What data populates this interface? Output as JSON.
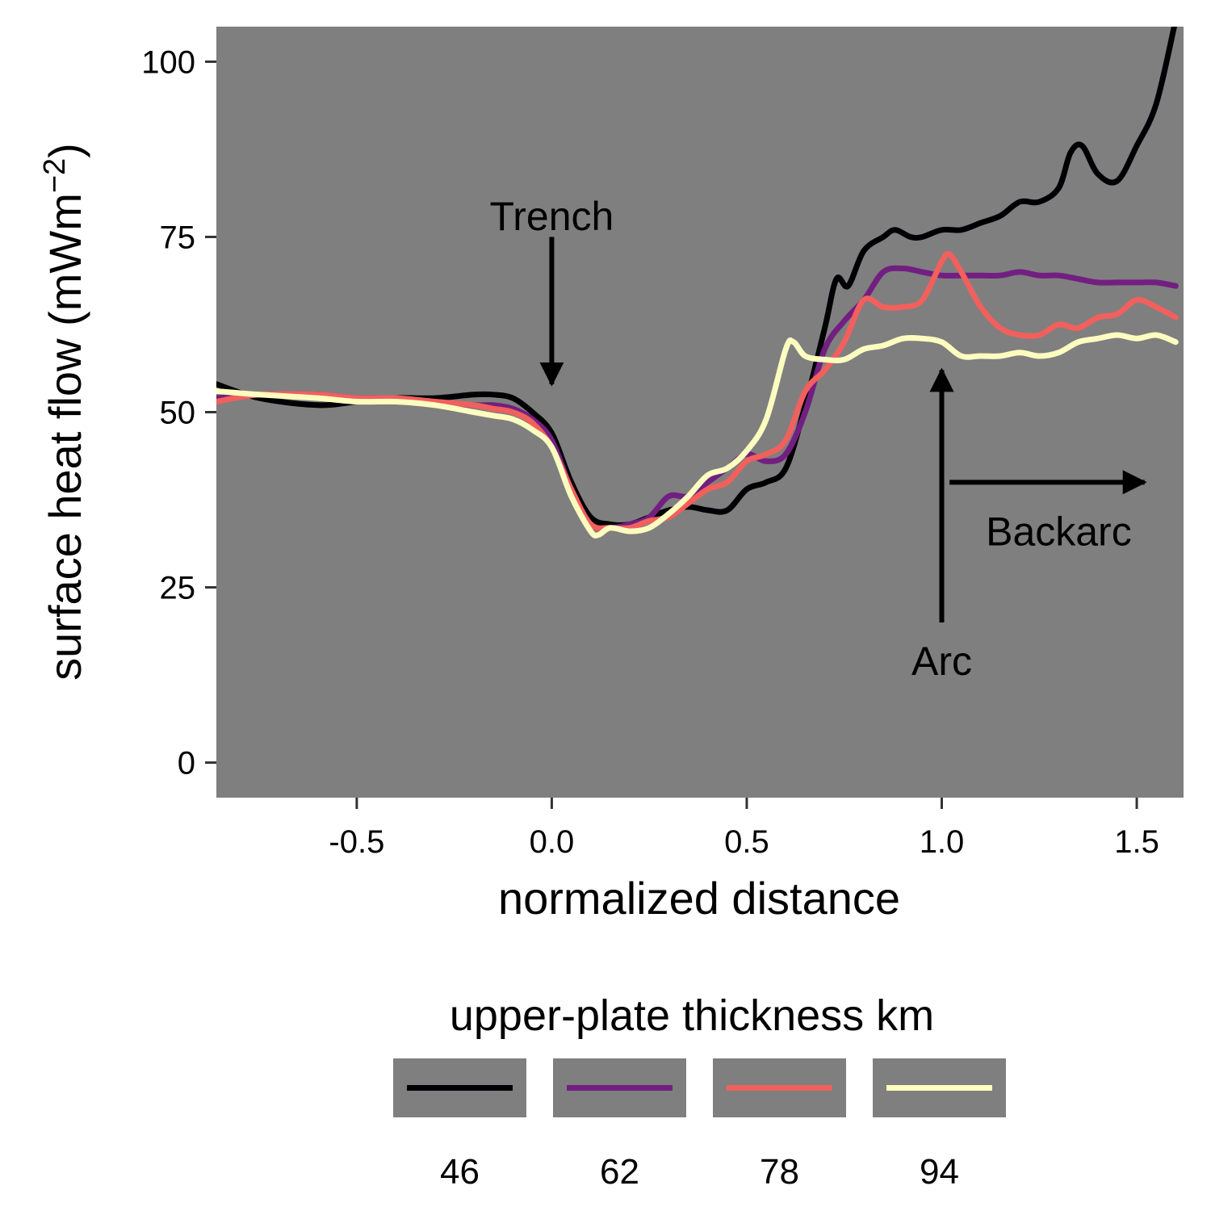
{
  "chart_data": {
    "type": "line",
    "xlabel": "normalized distance",
    "ylabel_main": "surface heat flow (mWm",
    "ylabel_sup": "−2",
    "ylabel_close": ")",
    "xlim": [
      -0.86,
      1.62
    ],
    "ylim": [
      -5,
      105
    ],
    "xticks": [
      -0.5,
      0.0,
      0.5,
      1.0,
      1.5
    ],
    "xtick_labels": [
      "-0.5",
      "0.0",
      "0.5",
      "1.0",
      "1.5"
    ],
    "yticks": [
      0,
      25,
      50,
      75,
      100
    ],
    "ytick_labels": [
      "0",
      "25",
      "50",
      "75",
      "100"
    ],
    "panel_background": "#7f7f7f",
    "grid": false,
    "legend": {
      "title": "upper-plate thickness km",
      "position": "bottom"
    },
    "series": [
      {
        "name": "46",
        "color": "#000004",
        "x": [
          -0.86,
          -0.75,
          -0.6,
          -0.5,
          -0.4,
          -0.3,
          -0.2,
          -0.15,
          -0.1,
          -0.05,
          0.0,
          0.05,
          0.1,
          0.15,
          0.2,
          0.25,
          0.3,
          0.35,
          0.4,
          0.45,
          0.5,
          0.55,
          0.6,
          0.65,
          0.7,
          0.73,
          0.76,
          0.8,
          0.85,
          0.88,
          0.92,
          0.95,
          1.0,
          1.05,
          1.1,
          1.15,
          1.2,
          1.25,
          1.3,
          1.33,
          1.36,
          1.4,
          1.45,
          1.5,
          1.55,
          1.6
        ],
        "y": [
          54,
          52,
          51,
          51.5,
          52,
          52,
          52.5,
          52.5,
          52,
          50,
          47,
          40,
          35,
          34,
          34,
          35,
          36,
          36.5,
          36,
          36,
          39,
          40,
          42,
          51,
          62,
          69,
          68,
          73,
          75,
          76,
          75,
          75,
          76,
          76,
          77,
          78,
          80,
          80,
          82,
          87,
          88,
          84,
          83,
          88,
          94,
          106
        ]
      },
      {
        "name": "62",
        "color": "#721f81",
        "x": [
          -0.86,
          -0.75,
          -0.6,
          -0.5,
          -0.4,
          -0.3,
          -0.2,
          -0.15,
          -0.1,
          -0.05,
          0.0,
          0.05,
          0.1,
          0.15,
          0.2,
          0.25,
          0.3,
          0.35,
          0.4,
          0.45,
          0.5,
          0.55,
          0.6,
          0.65,
          0.7,
          0.75,
          0.8,
          0.85,
          0.9,
          0.95,
          1.0,
          1.05,
          1.1,
          1.15,
          1.2,
          1.25,
          1.3,
          1.35,
          1.4,
          1.45,
          1.5,
          1.55,
          1.6
        ],
        "y": [
          52,
          52.5,
          52.5,
          52,
          52,
          51.5,
          51,
          51,
          50.5,
          49,
          46,
          39,
          34,
          33.5,
          34,
          35,
          38,
          38,
          40,
          42,
          44,
          43,
          44,
          50,
          59,
          63,
          66,
          70,
          70.5,
          70,
          69.5,
          69.5,
          69.5,
          69.5,
          70,
          69.5,
          69.5,
          69,
          68.5,
          68.5,
          68.5,
          68.5,
          68
        ]
      },
      {
        "name": "78",
        "color": "#f1605d",
        "x": [
          -0.86,
          -0.75,
          -0.6,
          -0.5,
          -0.4,
          -0.3,
          -0.2,
          -0.15,
          -0.1,
          -0.05,
          0.0,
          0.05,
          0.1,
          0.15,
          0.2,
          0.25,
          0.3,
          0.35,
          0.4,
          0.45,
          0.5,
          0.55,
          0.6,
          0.65,
          0.7,
          0.75,
          0.8,
          0.85,
          0.9,
          0.95,
          1.0,
          1.02,
          1.05,
          1.1,
          1.15,
          1.2,
          1.25,
          1.3,
          1.35,
          1.4,
          1.45,
          1.5,
          1.55,
          1.6
        ],
        "y": [
          51.5,
          52.5,
          52.5,
          52,
          52,
          51.5,
          51,
          50.5,
          50,
          48.5,
          45,
          39,
          34,
          33.5,
          33.5,
          34.5,
          35,
          37,
          39,
          40,
          43,
          44,
          46,
          53,
          56,
          60,
          66,
          65,
          65,
          66,
          71.5,
          72.5,
          70,
          65,
          62,
          61,
          61,
          62.5,
          62,
          63.5,
          64,
          66,
          65,
          63.5
        ]
      },
      {
        "name": "94",
        "color": "#fcfdbf",
        "x": [
          -0.86,
          -0.75,
          -0.6,
          -0.5,
          -0.4,
          -0.3,
          -0.2,
          -0.15,
          -0.1,
          -0.05,
          0.0,
          0.05,
          0.1,
          0.12,
          0.15,
          0.2,
          0.25,
          0.3,
          0.35,
          0.4,
          0.45,
          0.5,
          0.55,
          0.6,
          0.62,
          0.65,
          0.7,
          0.75,
          0.8,
          0.85,
          0.9,
          0.95,
          1.0,
          1.05,
          1.1,
          1.15,
          1.2,
          1.25,
          1.3,
          1.35,
          1.4,
          1.45,
          1.5,
          1.55,
          1.6
        ],
        "y": [
          53,
          52.5,
          52,
          51.5,
          51.5,
          51,
          50,
          49.5,
          49,
          47.5,
          45,
          38,
          33,
          32.5,
          33.5,
          33,
          33.5,
          35.5,
          38,
          41,
          42,
          44.5,
          49,
          59,
          60,
          58,
          57.5,
          57.5,
          59,
          59.5,
          60.5,
          60.5,
          60,
          58,
          58,
          58,
          58.5,
          58,
          58.5,
          60,
          60.5,
          61,
          60.5,
          61,
          60
        ]
      }
    ],
    "annotations": [
      {
        "label": "Trench",
        "x": 0.0,
        "y": 76,
        "arrow_from": [
          0.0,
          75
        ],
        "arrow_to": [
          0.0,
          54
        ]
      },
      {
        "label": "Arc",
        "x": 1.0,
        "y": 12.5,
        "arrow_from": [
          1.0,
          20
        ],
        "arrow_to": [
          1.0,
          56
        ]
      },
      {
        "label": "Backarc",
        "x": 1.3,
        "y": 31,
        "arrow_from": [
          1.02,
          40
        ],
        "arrow_to": [
          1.52,
          40
        ]
      }
    ]
  }
}
